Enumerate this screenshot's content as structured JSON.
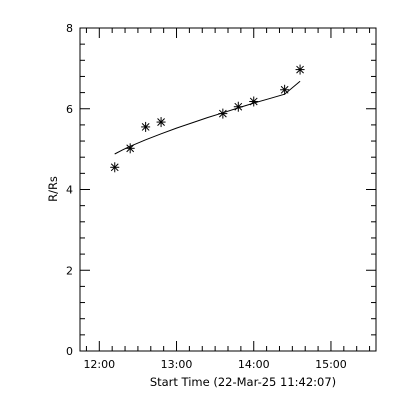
{
  "chart_data": {
    "type": "scatter",
    "title": "",
    "xlabel": "Start Time (22-Mar-25 11:42:07)",
    "ylabel": "R/Rs",
    "xlim": [
      "11:45",
      "15:35"
    ],
    "ylim": [
      0,
      8
    ],
    "x_ticks": [
      "12:00",
      "13:00",
      "14:00",
      "15:00"
    ],
    "y_ticks": [
      0,
      2,
      4,
      6,
      8
    ],
    "grid": false,
    "marker": "asterisk",
    "colors": {
      "axes": "#000000",
      "marks": "#000000"
    },
    "series": [
      {
        "points": [
          {
            "x": "12:12",
            "y": 4.55
          },
          {
            "x": "12:24",
            "y": 5.02
          },
          {
            "x": "12:36",
            "y": 5.55
          },
          {
            "x": "12:48",
            "y": 5.67
          },
          {
            "x": "13:36",
            "y": 5.88
          },
          {
            "x": "13:48",
            "y": 6.05
          },
          {
            "x": "14:00",
            "y": 6.18
          },
          {
            "x": "14:24",
            "y": 6.47
          },
          {
            "x": "14:36",
            "y": 6.97
          }
        ]
      }
    ],
    "fit_line": [
      {
        "x": "12:12",
        "y": 4.88
      },
      {
        "x": "12:18",
        "y": 4.98
      },
      {
        "x": "12:24",
        "y": 5.07
      },
      {
        "x": "12:30",
        "y": 5.15
      },
      {
        "x": "12:36",
        "y": 5.23
      },
      {
        "x": "12:48",
        "y": 5.38
      },
      {
        "x": "13:00",
        "y": 5.52
      },
      {
        "x": "13:12",
        "y": 5.65
      },
      {
        "x": "13:24",
        "y": 5.78
      },
      {
        "x": "13:36",
        "y": 5.9
      },
      {
        "x": "13:48",
        "y": 6.02
      },
      {
        "x": "14:00",
        "y": 6.14
      },
      {
        "x": "14:12",
        "y": 6.25
      },
      {
        "x": "14:24",
        "y": 6.36
      },
      {
        "x": "14:36",
        "y": 6.68
      }
    ]
  }
}
